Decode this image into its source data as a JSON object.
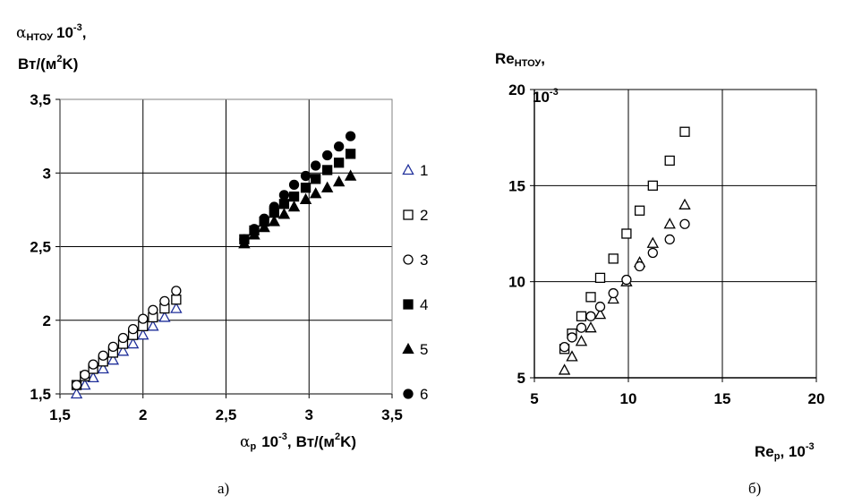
{
  "chart_data": [
    {
      "type": "scatter",
      "caption": "а)",
      "ylabel": {
        "symbol": "α",
        "sub": "НТОУ",
        "mult": "10",
        "exp": "-3",
        "tail": ",",
        "unit_pre": "Вт/(м",
        "unit_exp": "2",
        "unit_post": "K)"
      },
      "xlabel": {
        "symbol": "α",
        "sub": "р",
        "mult": "10",
        "exp": "-3",
        "tail": ",",
        "unit_pre": "Вт/(м",
        "unit_exp": "2",
        "unit_post": "K)"
      },
      "xlim": [
        1.5,
        3.5
      ],
      "ylim": [
        1.5,
        3.5
      ],
      "xticks": [
        1.5,
        2,
        2.5,
        3,
        3.5
      ],
      "yticks": [
        1.5,
        2,
        2.5,
        3,
        3.5
      ],
      "xtick_labels": [
        "1,5",
        "2",
        "2,5",
        "3",
        "3,5"
      ],
      "ytick_labels": [
        "1,5",
        "2",
        "2,5",
        "3",
        "3,5"
      ],
      "grid": true,
      "legend_position": "right",
      "series": [
        {
          "name": "1",
          "marker": "triangle-open",
          "color": "#1f2f9a",
          "points": [
            [
              1.6,
              1.5
            ],
            [
              1.65,
              1.56
            ],
            [
              1.7,
              1.61
            ],
            [
              1.76,
              1.67
            ],
            [
              1.82,
              1.73
            ],
            [
              1.88,
              1.79
            ],
            [
              1.94,
              1.84
            ],
            [
              2.0,
              1.9
            ],
            [
              2.06,
              1.96
            ],
            [
              2.13,
              2.02
            ],
            [
              2.2,
              2.08
            ]
          ]
        },
        {
          "name": "2",
          "marker": "square-open",
          "color": "#000000",
          "points": [
            [
              1.6,
              1.56
            ],
            [
              1.65,
              1.62
            ],
            [
              1.7,
              1.67
            ],
            [
              1.76,
              1.72
            ],
            [
              1.82,
              1.78
            ],
            [
              1.88,
              1.84
            ],
            [
              1.94,
              1.9
            ],
            [
              2.0,
              1.96
            ],
            [
              2.06,
              2.02
            ],
            [
              2.13,
              2.08
            ],
            [
              2.2,
              2.14
            ]
          ]
        },
        {
          "name": "3",
          "marker": "circle-open",
          "color": "#000000",
          "points": [
            [
              1.6,
              1.56
            ],
            [
              1.65,
              1.63
            ],
            [
              1.7,
              1.7
            ],
            [
              1.76,
              1.76
            ],
            [
              1.82,
              1.82
            ],
            [
              1.88,
              1.88
            ],
            [
              1.94,
              1.94
            ],
            [
              2.0,
              2.01
            ],
            [
              2.06,
              2.07
            ],
            [
              2.13,
              2.13
            ],
            [
              2.2,
              2.2
            ]
          ]
        },
        {
          "name": "4",
          "marker": "square-filled",
          "color": "#000000",
          "points": [
            [
              2.61,
              2.55
            ],
            [
              2.67,
              2.61
            ],
            [
              2.73,
              2.67
            ],
            [
              2.79,
              2.73
            ],
            [
              2.85,
              2.79
            ],
            [
              2.91,
              2.84
            ],
            [
              2.98,
              2.9
            ],
            [
              3.04,
              2.96
            ],
            [
              3.11,
              3.02
            ],
            [
              3.18,
              3.07
            ],
            [
              3.25,
              3.13
            ]
          ]
        },
        {
          "name": "5",
          "marker": "triangle-filled",
          "color": "#000000",
          "points": [
            [
              2.61,
              2.52
            ],
            [
              2.67,
              2.58
            ],
            [
              2.73,
              2.63
            ],
            [
              2.79,
              2.67
            ],
            [
              2.85,
              2.72
            ],
            [
              2.91,
              2.77
            ],
            [
              2.98,
              2.82
            ],
            [
              3.04,
              2.86
            ],
            [
              3.11,
              2.9
            ],
            [
              3.18,
              2.94
            ],
            [
              3.25,
              2.98
            ]
          ]
        },
        {
          "name": "6",
          "marker": "circle-filled",
          "color": "#000000",
          "points": [
            [
              2.61,
              2.55
            ],
            [
              2.67,
              2.62
            ],
            [
              2.73,
              2.69
            ],
            [
              2.79,
              2.77
            ],
            [
              2.85,
              2.85
            ],
            [
              2.91,
              2.92
            ],
            [
              2.98,
              2.98
            ],
            [
              3.04,
              3.05
            ],
            [
              3.11,
              3.12
            ],
            [
              3.18,
              3.18
            ],
            [
              3.25,
              3.25
            ]
          ]
        }
      ]
    },
    {
      "type": "scatter",
      "caption": "б)",
      "ylabel": {
        "symbol": "Re",
        "sub": "НТОУ",
        "tail": ",",
        "line2": "10",
        "line2_exp": "-3"
      },
      "xlabel": {
        "symbol": "Re",
        "sub": "р",
        "tail": ", 10",
        "exp": "-3"
      },
      "xlim": [
        5,
        20
      ],
      "ylim": [
        5,
        20
      ],
      "xticks": [
        5,
        10,
        15,
        20
      ],
      "yticks": [
        5,
        10,
        15,
        20
      ],
      "xtick_labels": [
        "5",
        "10",
        "15",
        "20"
      ],
      "ytick_labels": [
        "5",
        "10",
        "15",
        "20"
      ],
      "grid": true,
      "series": [
        {
          "marker": "square-open",
          "color": "#000000",
          "points": [
            [
              6.6,
              6.5
            ],
            [
              7.0,
              7.3
            ],
            [
              7.5,
              8.2
            ],
            [
              8.0,
              9.2
            ],
            [
              8.5,
              10.2
            ],
            [
              9.2,
              11.2
            ],
            [
              9.9,
              12.5
            ],
            [
              10.6,
              13.7
            ],
            [
              11.3,
              15.0
            ],
            [
              12.2,
              16.3
            ],
            [
              13.0,
              17.8
            ]
          ]
        },
        {
          "marker": "triangle-open",
          "color": "#000000",
          "points": [
            [
              6.6,
              5.4
            ],
            [
              7.0,
              6.1
            ],
            [
              7.5,
              6.9
            ],
            [
              8.0,
              7.6
            ],
            [
              8.5,
              8.3
            ],
            [
              9.2,
              9.1
            ],
            [
              9.9,
              10.0
            ],
            [
              10.6,
              11.0
            ],
            [
              11.3,
              12.0
            ],
            [
              12.2,
              13.0
            ],
            [
              13.0,
              14.0
            ]
          ]
        },
        {
          "marker": "circle-open",
          "color": "#000000",
          "points": [
            [
              6.6,
              6.6
            ],
            [
              7.0,
              7.1
            ],
            [
              7.5,
              7.6
            ],
            [
              8.0,
              8.2
            ],
            [
              8.5,
              8.7
            ],
            [
              9.2,
              9.4
            ],
            [
              9.9,
              10.1
            ],
            [
              10.6,
              10.8
            ],
            [
              11.3,
              11.5
            ],
            [
              12.2,
              12.2
            ],
            [
              13.0,
              13.0
            ]
          ]
        }
      ]
    }
  ]
}
